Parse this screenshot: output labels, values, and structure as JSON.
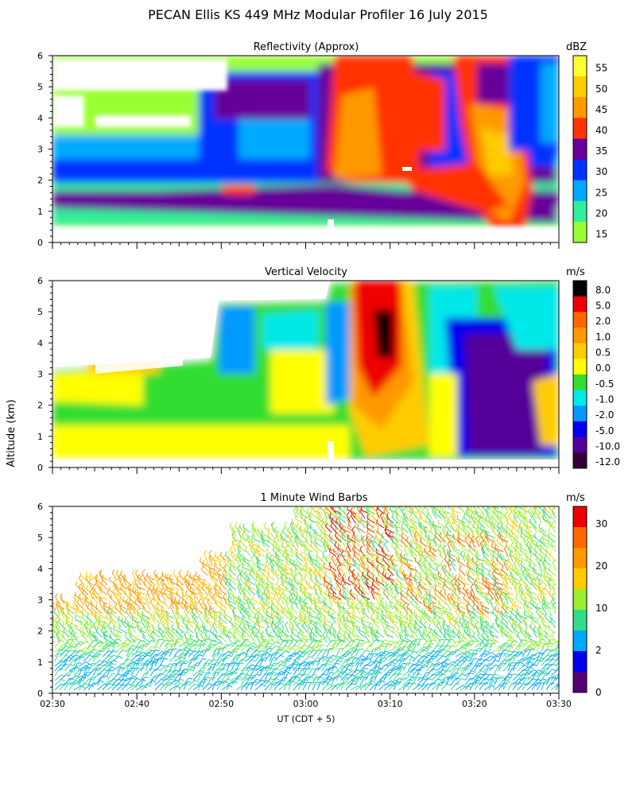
{
  "figure": {
    "title": "PECAN Ellis KS 449 MHz Modular Profiler 16 July 2015",
    "ylabel": "Altitude (km)",
    "xlabel": "UT (CDT + 5)",
    "x_ticks": [
      "02:30",
      "02:40",
      "02:50",
      "03:00",
      "03:10",
      "03:20",
      "03:30"
    ],
    "y_ticks": [
      "0",
      "1",
      "2",
      "3",
      "4",
      "5",
      "6"
    ]
  },
  "chart_data": [
    {
      "type": "heatmap",
      "title": "Reflectivity (Approx)",
      "units": "dBZ",
      "xlim": [
        "02:30",
        "03:30"
      ],
      "ylim": [
        0,
        6
      ],
      "colorbar": {
        "labels": [
          "55",
          "50",
          "45",
          "40",
          "35",
          "30",
          "25",
          "20",
          "15"
        ],
        "colors": [
          "#ffff33",
          "#ffcc00",
          "#ff9900",
          "#ff3300",
          "#660099",
          "#0033ff",
          "#00aaff",
          "#33ee99",
          "#99ff33"
        ]
      },
      "features": [
        {
          "time": "02:30-03:30",
          "alt": "0.5-1.5",
          "dbz": "30-35"
        },
        {
          "time": "03:04-03:12",
          "alt": "0.9-6.0",
          "dbz": "40-45"
        },
        {
          "time": "03:18-03:25",
          "alt": "0.3-6.0",
          "dbz": "40-55"
        }
      ]
    },
    {
      "type": "heatmap",
      "title": "Vertical Velocity",
      "units": "m/s",
      "xlim": [
        "02:30",
        "03:30"
      ],
      "ylim": [
        0,
        6
      ],
      "colorbar": {
        "labels": [
          "8.0",
          "5.0",
          "2.0",
          "1.0",
          "0.5",
          "0.0",
          "-0.5",
          "-1.0",
          "-2.0",
          "-5.0",
          "-10.0",
          "-12.0"
        ],
        "colors": [
          "#000000",
          "#ee0000",
          "#ff6600",
          "#ff9900",
          "#ffcc00",
          "#ffff00",
          "#33dd33",
          "#00e8e8",
          "#0099ff",
          "#0000ee",
          "#550099",
          "#330033"
        ]
      },
      "features": [
        {
          "time": "03:07-03:10",
          "alt": "3.5-6.0",
          "w": "5.0-8.0"
        },
        {
          "time": "03:17-03:25",
          "alt": "0.3-5.0",
          "w": "-5.0 to -10.0"
        }
      ]
    },
    {
      "type": "scatter",
      "title": "1 Minute Wind Barbs",
      "units": "m/s",
      "xlim": [
        "02:30",
        "03:30"
      ],
      "ylim": [
        0,
        6
      ],
      "colorbar": {
        "labels": [
          "30",
          "20",
          "10",
          "2",
          "0"
        ],
        "colors": [
          "#ee0000",
          "#ff6600",
          "#ff9900",
          "#ffcc00",
          "#99ee33",
          "#33dd88",
          "#00aaff",
          "#0000ee",
          "#550077"
        ]
      }
    }
  ]
}
